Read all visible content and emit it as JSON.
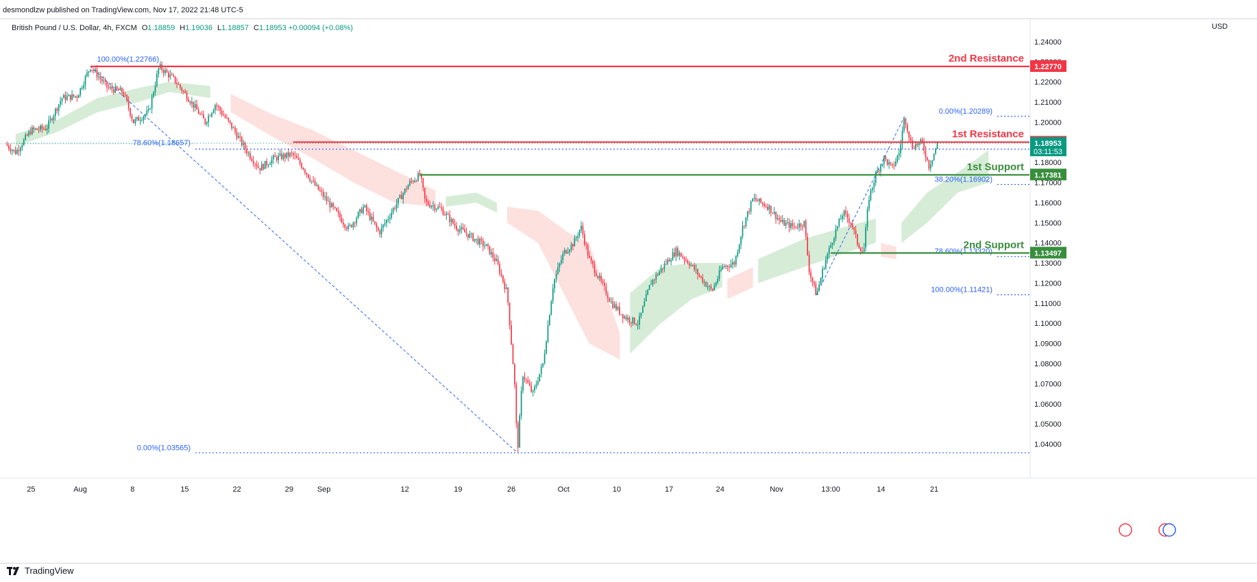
{
  "publisher_line": "desmondlzw published on TradingView.com, Nov 17, 2022 21:48 UTC-5",
  "legend": {
    "symbol": "British Pound / U.S. Dollar, 4h, FXCM",
    "open_label": "O",
    "open": "1.18859",
    "high_label": "H",
    "high": "1.19036",
    "low_label": "L",
    "low": "1.18857",
    "close_label": "C",
    "close": "1.18953",
    "change": "+0.00094 (+0.08%)"
  },
  "currency": "USD",
  "footer": {
    "brand": "TradingView"
  },
  "chart_data": {
    "type": "candlestick",
    "ylim": [
      1.0327,
      1.2471
    ],
    "price_ticks": [
      "1.04000",
      "1.05000",
      "1.06000",
      "1.07000",
      "1.08000",
      "1.09000",
      "1.10000",
      "1.11000",
      "1.12000",
      "1.13000",
      "1.14000",
      "1.15000",
      "1.16000",
      "1.17000",
      "1.18000",
      "1.19000",
      "1.20000",
      "1.21000",
      "1.22000",
      "1.23000",
      "1.24000"
    ],
    "time_ticks": [
      {
        "label": "25",
        "t": 0.025
      },
      {
        "label": "Aug",
        "t": 0.073
      },
      {
        "label": "8",
        "t": 0.124
      },
      {
        "label": "15",
        "t": 0.175
      },
      {
        "label": "22",
        "t": 0.226
      },
      {
        "label": "29",
        "t": 0.277
      },
      {
        "label": "Sep",
        "t": 0.311
      },
      {
        "label": "12",
        "t": 0.39
      },
      {
        "label": "19",
        "t": 0.442
      },
      {
        "label": "26",
        "t": 0.494
      },
      {
        "label": "Oct",
        "t": 0.545
      },
      {
        "label": "10",
        "t": 0.597
      },
      {
        "label": "17",
        "t": 0.648
      },
      {
        "label": "24",
        "t": 0.698
      },
      {
        "label": "Nov",
        "t": 0.753
      },
      {
        "label": "13:00",
        "t": 0.806
      },
      {
        "label": "14",
        "t": 0.855
      },
      {
        "label": "21",
        "t": 0.907
      }
    ],
    "price_path": [
      [
        0.0,
        1.189
      ],
      [
        0.01,
        1.185
      ],
      [
        0.025,
        1.196
      ],
      [
        0.04,
        1.197
      ],
      [
        0.055,
        1.212
      ],
      [
        0.07,
        1.213
      ],
      [
        0.083,
        1.2277
      ],
      [
        0.1,
        1.217
      ],
      [
        0.115,
        1.215
      ],
      [
        0.125,
        1.2
      ],
      [
        0.14,
        1.205
      ],
      [
        0.15,
        1.2277
      ],
      [
        0.165,
        1.221
      ],
      [
        0.18,
        1.211
      ],
      [
        0.195,
        1.2
      ],
      [
        0.205,
        1.209
      ],
      [
        0.222,
        1.197
      ],
      [
        0.235,
        1.186
      ],
      [
        0.248,
        1.177
      ],
      [
        0.262,
        1.182
      ],
      [
        0.28,
        1.184
      ],
      [
        0.29,
        1.178
      ],
      [
        0.3,
        1.17
      ],
      [
        0.32,
        1.157
      ],
      [
        0.335,
        1.147
      ],
      [
        0.35,
        1.158
      ],
      [
        0.365,
        1.145
      ],
      [
        0.38,
        1.158
      ],
      [
        0.395,
        1.17
      ],
      [
        0.405,
        1.1738
      ],
      [
        0.41,
        1.16
      ],
      [
        0.425,
        1.157
      ],
      [
        0.44,
        1.148
      ],
      [
        0.455,
        1.143
      ],
      [
        0.47,
        1.138
      ],
      [
        0.48,
        1.13
      ],
      [
        0.49,
        1.115
      ],
      [
        0.497,
        1.072
      ],
      [
        0.5,
        1.0357
      ],
      [
        0.505,
        1.075
      ],
      [
        0.515,
        1.065
      ],
      [
        0.525,
        1.08
      ],
      [
        0.535,
        1.12
      ],
      [
        0.545,
        1.135
      ],
      [
        0.555,
        1.14
      ],
      [
        0.562,
        1.148
      ],
      [
        0.57,
        1.132
      ],
      [
        0.58,
        1.122
      ],
      [
        0.592,
        1.11
      ],
      [
        0.605,
        1.103
      ],
      [
        0.618,
        1.1
      ],
      [
        0.63,
        1.12
      ],
      [
        0.645,
        1.13
      ],
      [
        0.655,
        1.136
      ],
      [
        0.668,
        1.13
      ],
      [
        0.68,
        1.122
      ],
      [
        0.69,
        1.116
      ],
      [
        0.7,
        1.128
      ],
      [
        0.712,
        1.13
      ],
      [
        0.72,
        1.148
      ],
      [
        0.73,
        1.162
      ],
      [
        0.745,
        1.158
      ],
      [
        0.758,
        1.15
      ],
      [
        0.77,
        1.148
      ],
      [
        0.78,
        1.15
      ],
      [
        0.785,
        1.126
      ],
      [
        0.792,
        1.1142
      ],
      [
        0.8,
        1.13
      ],
      [
        0.81,
        1.145
      ],
      [
        0.818,
        1.155
      ],
      [
        0.826,
        1.15
      ],
      [
        0.832,
        1.14
      ],
      [
        0.838,
        1.1348
      ],
      [
        0.843,
        1.162
      ],
      [
        0.85,
        1.174
      ],
      [
        0.858,
        1.182
      ],
      [
        0.866,
        1.177
      ],
      [
        0.873,
        1.185
      ],
      [
        0.878,
        1.2029
      ],
      [
        0.885,
        1.188
      ],
      [
        0.895,
        1.19
      ],
      [
        0.902,
        1.178
      ],
      [
        0.91,
        1.189
      ]
    ],
    "cloud_bands": [
      {
        "color": "#c8e6c9",
        "points": [
          [
            0.01,
            1.188,
            1.194
          ],
          [
            0.05,
            1.195,
            1.201
          ],
          [
            0.09,
            1.205,
            1.212
          ],
          [
            0.13,
            1.21,
            1.217
          ],
          [
            0.16,
            1.215,
            1.22
          ],
          [
            0.2,
            1.212,
            1.218
          ]
        ]
      },
      {
        "color": "#fcd7d4",
        "points": [
          [
            0.22,
            1.205,
            1.214
          ],
          [
            0.26,
            1.193,
            1.204
          ],
          [
            0.3,
            1.182,
            1.196
          ],
          [
            0.34,
            1.17,
            1.186
          ],
          [
            0.38,
            1.16,
            1.176
          ],
          [
            0.42,
            1.158,
            1.166
          ]
        ]
      },
      {
        "color": "#c8e6c9",
        "points": [
          [
            0.43,
            1.158,
            1.163
          ],
          [
            0.46,
            1.16,
            1.165
          ],
          [
            0.48,
            1.155,
            1.16
          ]
        ]
      },
      {
        "color": "#fcd7d4",
        "points": [
          [
            0.49,
            1.15,
            1.158
          ],
          [
            0.52,
            1.14,
            1.156
          ],
          [
            0.55,
            1.11,
            1.145
          ],
          [
            0.57,
            1.09,
            1.14
          ],
          [
            0.6,
            1.082,
            1.095
          ]
        ]
      },
      {
        "color": "#c8e6c9",
        "points": [
          [
            0.61,
            1.085,
            1.115
          ],
          [
            0.64,
            1.1,
            1.128
          ],
          [
            0.67,
            1.112,
            1.13
          ],
          [
            0.7,
            1.118,
            1.13
          ]
        ]
      },
      {
        "color": "#fcd7d4",
        "points": [
          [
            0.705,
            1.112,
            1.122
          ],
          [
            0.73,
            1.118,
            1.128
          ]
        ]
      },
      {
        "color": "#c8e6c9",
        "points": [
          [
            0.735,
            1.12,
            1.132
          ],
          [
            0.78,
            1.128,
            1.142
          ],
          [
            0.82,
            1.135,
            1.148
          ],
          [
            0.85,
            1.14,
            1.152
          ]
        ]
      },
      {
        "color": "#fcd7d4",
        "points": [
          [
            0.855,
            1.133,
            1.14
          ],
          [
            0.87,
            1.132,
            1.138
          ]
        ]
      },
      {
        "color": "#c8e6c9",
        "points": [
          [
            0.875,
            1.14,
            1.15
          ],
          [
            0.9,
            1.15,
            1.165
          ],
          [
            0.93,
            1.165,
            1.175
          ],
          [
            0.96,
            1.17,
            1.186
          ]
        ]
      }
    ],
    "levels": [
      {
        "name": "2nd Resistance",
        "price": 1.2277,
        "price_label": "1.22770",
        "color": "#f23645",
        "label_color": "#f23645",
        "x_start": 0.083
      },
      {
        "name": "1st Resistance",
        "price": 1.19008,
        "price_label": "1.19008",
        "color": "#f23645",
        "label_color": "#f23645",
        "x_start": 0.281
      },
      {
        "name": "1st Support",
        "price": 1.17381,
        "price_label": "1.17381",
        "color": "#388e3c",
        "label_color": "#388e3c",
        "x_start": 0.405
      },
      {
        "name": "2nd Support",
        "price": 1.13497,
        "price_label": "1.13497",
        "color": "#388e3c",
        "label_color": "#388e3c",
        "x_start": 0.806
      }
    ],
    "last_price": {
      "price": 1.18953,
      "label": "1.18953",
      "countdown": "03:11:53",
      "color": "#089981"
    },
    "fib_big": {
      "high": {
        "x": 0.083,
        "price": 1.22766,
        "label": "100.00%(1.22766)"
      },
      "low": {
        "x": 0.5,
        "price": 1.03565,
        "label": "0.00%(1.03565)"
      },
      "mid": {
        "price": 1.18657,
        "label": "78.60%(1.18657)"
      }
    },
    "fib_small": {
      "low": {
        "x": 0.792,
        "price": 1.11421,
        "label": "100.00%(1.11421)"
      },
      "high": {
        "x": 0.878,
        "price": 1.20289,
        "label": "0.00%(1.20289)"
      },
      "levels": [
        {
          "price": 1.16902,
          "label": "38.20%(1.16902)"
        },
        {
          "price": 1.1332,
          "label": "78.60%(1.13320)"
        }
      ]
    },
    "colors": {
      "up": "#089981",
      "down": "#f23645",
      "fib": "#2962ff"
    }
  }
}
